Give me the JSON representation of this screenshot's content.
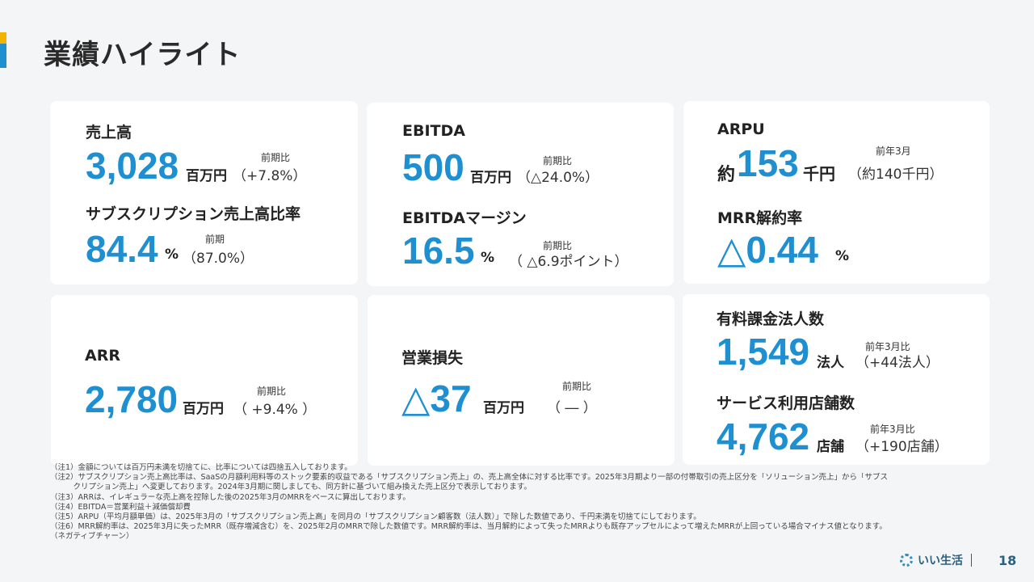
{
  "header": {
    "title": "業績ハイライト"
  },
  "cards": {
    "revenue": {
      "label": "売上高",
      "value": "3,028",
      "unit": "百万円",
      "cmp_label": "前期比",
      "cmp_value": "（+7.8%）"
    },
    "subscription_ratio": {
      "label": "サブスクリプション売上高比率",
      "value": "84.4",
      "unit": "%",
      "cmp_label": "前期",
      "cmp_value": "（87.0%）"
    },
    "ebitda": {
      "label": "EBITDA",
      "value": "500",
      "unit": "百万円",
      "cmp_label": "前期比",
      "cmp_value": "（△24.0%）"
    },
    "ebitda_margin": {
      "label": "EBITDAマージン",
      "value": "16.5",
      "unit": "%",
      "cmp_label": "前期比",
      "cmp_value": "（ △6.9ポイント）"
    },
    "arpu": {
      "label": "ARPU",
      "prefix": "約",
      "value": "153",
      "unit": "千円",
      "cmp_label": "前年3月",
      "cmp_value": "（約140千円）"
    },
    "mrr_churn": {
      "label": "MRR解約率",
      "value": "△0.44",
      "unit": "%"
    },
    "arr": {
      "label": "ARR",
      "value": "2,780",
      "unit": "百万円",
      "cmp_label": "前期比",
      "cmp_value": "（ +9.4% ）"
    },
    "operating_loss": {
      "label": "営業損失",
      "value": "△37",
      "unit": "百万円",
      "cmp_label": "前期比",
      "cmp_value": "（ ― ）"
    },
    "paid_corporations": {
      "label": "有料課金法人数",
      "value": "1,549",
      "unit": "法人",
      "cmp_label": "前年3月比",
      "cmp_value": "（+44法人）"
    },
    "service_stores": {
      "label": "サービス利用店舗数",
      "value": "4,762",
      "unit": "店舗",
      "cmp_label": "前年3月比",
      "cmp_value": "（+190店舗）"
    }
  },
  "notes": [
    "（注1）金額については百万円未満を切捨てに、比率については四捨五入しております。",
    "（注2）サブスクリプション売上高比率は、SaaSの月額利用料等のストック要素的収益である「サブスクリプション売上」の、売上高全体に対する比率です。2025年3月期より一部の付帯取引の売上区分を「ソリューション売上」から「サブス",
    "　　　クリプション売上」へ変更しております。2024年3月期に関しましても、同方針に基づいて組み換えた売上区分で表示しております。",
    "（注3）ARRは、イレギュラーな売上高を控除した後の2025年3月のMRRをベースに算出しております。",
    "（注4）EBITDA＝営業利益＋減価償却費",
    "（注5）ARPU（平均月額単価）は、2025年3月の「サブスクリプション売上高」を同月の「サブスクリプション顧客数（法人数）」で除した数値であり、千円未満を切捨てにしております。",
    "（注6）MRR解約率は、2025年3月に失ったMRR（既存増減含む）を、2025年2月のMRRで除した数値です。MRR解約率は、当月解約によって失ったMRRよりも既存アップセルによって増えたMRRが上回っている場合マイナス値となります。",
    "（ネガティブチャーン）"
  ],
  "footer": {
    "logo_text": "いい生活",
    "page_number": "18"
  },
  "colors": {
    "accent_blue": "#1e8fd0",
    "accent_yellow": "#f2b400"
  }
}
